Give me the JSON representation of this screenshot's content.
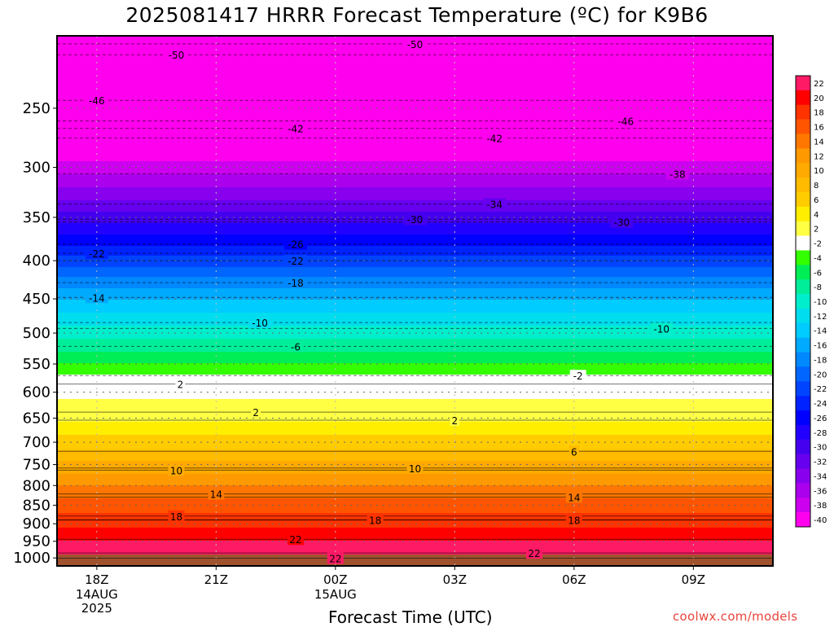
{
  "chart_data": {
    "type": "heatmap",
    "title": "2025081417 HRRR Forecast Temperature (ºC) for K9B6",
    "xlabel": "Forecast Time (UTC)",
    "ylabel": "",
    "x_ticks": [
      {
        "x": 0,
        "label": "18Z",
        "sub": [
          "14AUG",
          "2025"
        ]
      },
      {
        "x": 3,
        "label": "21Z",
        "sub": []
      },
      {
        "x": 6,
        "label": "00Z",
        "sub": [
          "15AUG"
        ]
      },
      {
        "x": 9,
        "label": "03Z",
        "sub": []
      },
      {
        "x": 12,
        "label": "06Z",
        "sub": []
      },
      {
        "x": 15,
        "label": "09Z",
        "sub": []
      }
    ],
    "xlim": [
      -1,
      17
    ],
    "y_ticks": [
      250,
      300,
      350,
      400,
      450,
      500,
      550,
      600,
      650,
      700,
      750,
      800,
      850,
      900,
      950,
      1000
    ],
    "ylim_hPa": [
      200,
      1025
    ],
    "y_scale": "log",
    "grid": true,
    "colorbar": {
      "levels": [
        22,
        20,
        18,
        16,
        14,
        12,
        10,
        8,
        6,
        4,
        2,
        -2,
        -4,
        -6,
        -8,
        -10,
        -12,
        -14,
        -16,
        -18,
        -20,
        -22,
        -24,
        -26,
        -28,
        -30,
        -32,
        -34,
        -36,
        -38,
        -40
      ],
      "colors": [
        "#ff1a66",
        "#ff0000",
        "#ff3300",
        "#ff5500",
        "#ff7700",
        "#ff9900",
        "#ffaa00",
        "#ffbb00",
        "#ffcc00",
        "#ffee00",
        "#ffff44",
        "#ffffff",
        "#33ff00",
        "#00ee55",
        "#00ee99",
        "#00eecc",
        "#00ddee",
        "#00ccff",
        "#00aaff",
        "#0088ff",
        "#0066ff",
        "#0044ff",
        "#0022ff",
        "#0000ff",
        "#2200ff",
        "#4400ee",
        "#6600ee",
        "#8800ee",
        "#aa00ee",
        "#cc00ee",
        "#ff00ee"
      ]
    },
    "temperature_profile": {
      "pressure_hPa": [
        200,
        250,
        300,
        350,
        400,
        450,
        500,
        550,
        600,
        650,
        700,
        750,
        800,
        850,
        900,
        950,
        1000
      ],
      "temp_C": [
        -53,
        -46,
        -37,
        -29,
        -21,
        -14,
        -9,
        -4,
        1.5,
        3.5,
        7,
        10.5,
        14,
        17,
        19.5,
        22,
        22.5
      ]
    },
    "contour_labels": [
      {
        "text": "-50",
        "x": 2.0,
        "p": 212
      },
      {
        "text": "-50",
        "x": 8.0,
        "p": 205
      },
      {
        "text": "-46",
        "x": 0.0,
        "p": 244
      },
      {
        "text": "-46",
        "x": 13.3,
        "p": 260
      },
      {
        "text": "-42",
        "x": 5.0,
        "p": 266
      },
      {
        "text": "-42",
        "x": 10.0,
        "p": 274
      },
      {
        "text": "-38",
        "x": 14.6,
        "p": 306
      },
      {
        "text": "-34",
        "x": 10.0,
        "p": 336
      },
      {
        "text": "-30",
        "x": 8.0,
        "p": 352
      },
      {
        "text": "-30",
        "x": 13.2,
        "p": 355
      },
      {
        "text": "-26",
        "x": 5.0,
        "p": 380
      },
      {
        "text": "-22",
        "x": 0.0,
        "p": 391
      },
      {
        "text": "-22",
        "x": 5.0,
        "p": 400
      },
      {
        "text": "-18",
        "x": 5.0,
        "p": 428
      },
      {
        "text": "-14",
        "x": 0.0,
        "p": 448
      },
      {
        "text": "-10",
        "x": 4.1,
        "p": 484
      },
      {
        "text": "-10",
        "x": 14.2,
        "p": 493
      },
      {
        "text": "-6",
        "x": 5.0,
        "p": 521
      },
      {
        "text": "-2",
        "x": 12.1,
        "p": 570
      },
      {
        "text": "2",
        "x": 2.1,
        "p": 585
      },
      {
        "text": "2",
        "x": 4.0,
        "p": 638
      },
      {
        "text": "2",
        "x": 9.0,
        "p": 654
      },
      {
        "text": "6",
        "x": 12.0,
        "p": 720
      },
      {
        "text": "10",
        "x": 2.0,
        "p": 763
      },
      {
        "text": "10",
        "x": 8.0,
        "p": 758
      },
      {
        "text": "14",
        "x": 3.0,
        "p": 821
      },
      {
        "text": "14",
        "x": 12.0,
        "p": 829
      },
      {
        "text": "18",
        "x": 2.0,
        "p": 879
      },
      {
        "text": "18",
        "x": 7.0,
        "p": 890
      },
      {
        "text": "18",
        "x": 12.0,
        "p": 889
      },
      {
        "text": "22",
        "x": 5.0,
        "p": 944
      },
      {
        "text": "22",
        "x": 6.0,
        "p": 1001
      },
      {
        "text": "22",
        "x": 11.0,
        "p": 985
      }
    ]
  }
}
